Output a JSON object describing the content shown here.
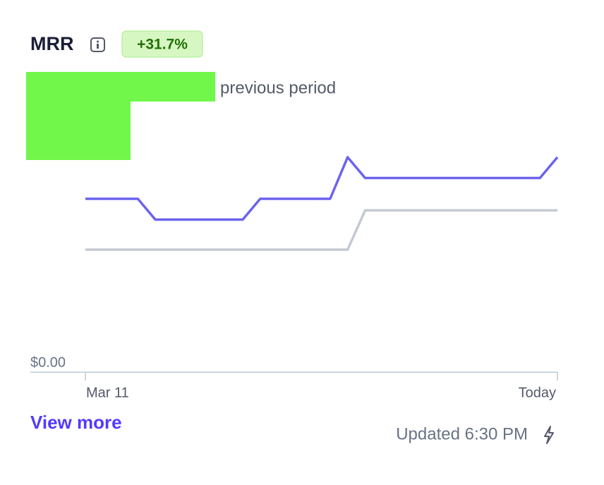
{
  "widget": {
    "title": "MRR",
    "change": "+31.7%",
    "link": "View more",
    "updated": "Updated 6:30 PM"
  },
  "chart_data": {
    "type": "line",
    "x": [
      "Mar 11",
      null,
      null,
      null,
      null,
      null,
      null,
      null,
      null,
      null,
      null,
      null,
      null,
      null,
      null,
      null,
      null,
      null,
      null,
      null,
      null,
      null,
      null,
      null,
      null,
      null,
      null,
      "Today"
    ],
    "series": [
      {
        "color": "#6c63ef",
        "values": [
          75,
          75,
          75,
          75,
          66,
          66,
          66,
          66,
          66,
          66,
          75,
          75,
          75,
          75,
          75,
          93,
          84,
          84,
          84,
          84,
          84,
          84,
          84,
          84,
          84,
          84,
          84,
          93
        ]
      },
      {
        "name": "previous period",
        "color": "#c4c9d2",
        "values": [
          53,
          53,
          53,
          53,
          53,
          53,
          53,
          53,
          53,
          53,
          53,
          53,
          53,
          53,
          53,
          53,
          70,
          70,
          70,
          70,
          70,
          70,
          70,
          70,
          70,
          70,
          70,
          70
        ]
      }
    ],
    "ylim": [
      0,
      100
    ],
    "yticks": [
      {
        "value": 0,
        "label": "$0.00"
      }
    ]
  }
}
